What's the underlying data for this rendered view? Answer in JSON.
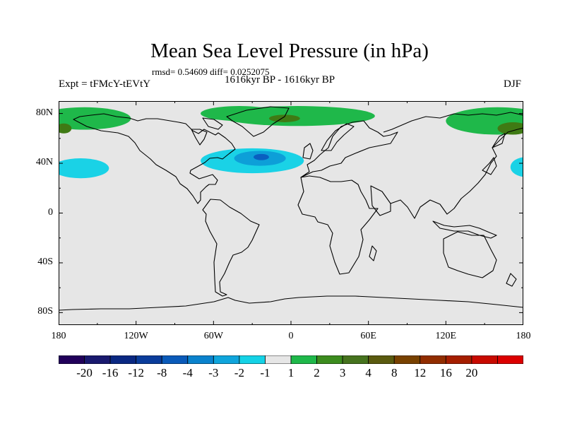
{
  "title": "Mean Sea Level Pressure (in hPa)",
  "stats": "rmsd= 0.54609 diff= 0.0252075",
  "experiment": "Expt = tFMcY-tEVtY",
  "period": "1616kyr BP - 1616kyr BP",
  "season": "DJF",
  "map": {
    "background_color": "#e6e6e6",
    "coastline_color": "#000000",
    "lat_labels": [
      {
        "lat": 80,
        "text": "80N"
      },
      {
        "lat": 40,
        "text": "40N"
      },
      {
        "lat": 0,
        "text": "0"
      },
      {
        "lat": -40,
        "text": "40S"
      },
      {
        "lat": -80,
        "text": "80S"
      }
    ],
    "lon_labels": [
      {
        "lon": -180,
        "text": "180"
      },
      {
        "lon": -120,
        "text": "120W"
      },
      {
        "lon": -60,
        "text": "60W"
      },
      {
        "lon": 0,
        "text": "0"
      },
      {
        "lon": 60,
        "text": "60E"
      },
      {
        "lon": 120,
        "text": "120E"
      },
      {
        "lon": 180,
        "text": "180"
      }
    ],
    "anomalies": [
      {
        "name": "north-atlantic-low-outer",
        "lon": -30,
        "lat": 42,
        "dlon": 40,
        "dlat": 10,
        "color": "#1ad2e6"
      },
      {
        "name": "north-atlantic-low-mid",
        "lon": -24,
        "lat": 44,
        "dlon": 20,
        "dlat": 6,
        "color": "#0d9fd8"
      },
      {
        "name": "north-atlantic-low-core",
        "lon": -23,
        "lat": 45,
        "dlon": 6,
        "dlat": 2.5,
        "color": "#0a5fc0"
      },
      {
        "name": "north-pacific-low-west",
        "lon": -163,
        "lat": 36,
        "dlon": 22,
        "dlat": 8,
        "color": "#1ad2e6"
      },
      {
        "name": "north-pacific-low-east",
        "lon": 182,
        "lat": 37,
        "dlon": 12,
        "dlat": 8,
        "color": "#1ad2e6"
      },
      {
        "name": "arctic-high-alaska",
        "lon": -160,
        "lat": 76,
        "dlon": 36,
        "dlat": 9,
        "color": "#1fb84a"
      },
      {
        "name": "arctic-high-greenland",
        "lon": -40,
        "lat": 80,
        "dlon": 30,
        "dlat": 6,
        "color": "#1fb84a"
      },
      {
        "name": "arctic-high-barents",
        "lon": 5,
        "lat": 78,
        "dlon": 60,
        "dlat": 8,
        "color": "#1fb84a"
      },
      {
        "name": "arctic-high-siberia",
        "lon": 160,
        "lat": 74,
        "dlon": 40,
        "dlat": 11,
        "color": "#1fb84a"
      },
      {
        "name": "arctic-high-barents-core",
        "lon": -5,
        "lat": 76,
        "dlon": 12,
        "dlat": 3,
        "color": "#3f7a14"
      },
      {
        "name": "arctic-high-siberia-core",
        "lon": 172,
        "lat": 68,
        "dlon": 12,
        "dlat": 5,
        "color": "#3f7a14"
      },
      {
        "name": "arctic-high-alaska-core",
        "lon": -176,
        "lat": 68,
        "dlon": 6,
        "dlat": 4,
        "color": "#3f7a14"
      }
    ]
  },
  "colorbar": {
    "colors": [
      "#21005a",
      "#19196e",
      "#0a2882",
      "#0a3c9b",
      "#0a5ab9",
      "#0a82cd",
      "#0fa5dc",
      "#14d2e6",
      "#e6e6e6",
      "#1fb84a",
      "#3c8c1e",
      "#46731e",
      "#5a5a0f",
      "#784100",
      "#912d00",
      "#a51e00",
      "#c80a00",
      "#dc0000"
    ],
    "labels": [
      "-20",
      "-16",
      "-12",
      "-8",
      "-4",
      "-3",
      "-2",
      "-1",
      "1",
      "2",
      "3",
      "4",
      "8",
      "12",
      "16",
      "20"
    ]
  }
}
